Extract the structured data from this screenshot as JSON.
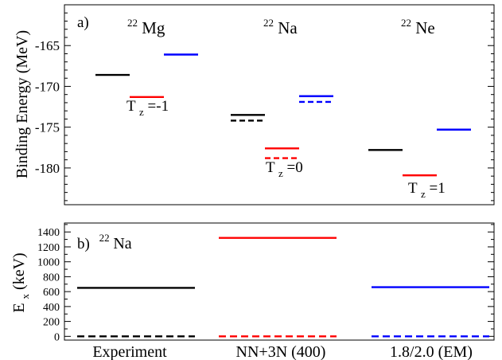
{
  "chart_data": [
    {
      "type": "level-scheme",
      "panel_label": "a)",
      "ylabel": "Binding Energy (MeV)",
      "ylim": [
        -184.5,
        -160
      ],
      "yticks": [
        -165,
        -170,
        -175,
        -180
      ],
      "tick_labels": [
        "-165",
        "-170",
        "-175",
        "-180"
      ],
      "grid": false,
      "nuclei": [
        {
          "mass": "22",
          "symbol": "Mg",
          "tz_sub": "z",
          "tz_value": "=-1"
        },
        {
          "mass": "22",
          "symbol": "Na",
          "tz_sub": "z",
          "tz_value": "=0"
        },
        {
          "mass": "22",
          "symbol": "Ne",
          "tz_sub": "z",
          "tz_value": "=1"
        }
      ],
      "tz_prefix": "T",
      "series_colors": [
        "#000000",
        "#ff0000",
        "#0000ff"
      ],
      "levels": [
        {
          "nucleus": 0,
          "series": 0,
          "energy": -168.6,
          "style": "solid"
        },
        {
          "nucleus": 0,
          "series": 1,
          "energy": -171.3,
          "style": "solid"
        },
        {
          "nucleus": 0,
          "series": 2,
          "energy": -166.1,
          "style": "solid"
        },
        {
          "nucleus": 1,
          "series": 0,
          "energy": -173.5,
          "style": "solid"
        },
        {
          "nucleus": 1,
          "series": 0,
          "energy": -174.2,
          "style": "dashed"
        },
        {
          "nucleus": 1,
          "series": 1,
          "energy": -177.6,
          "style": "solid"
        },
        {
          "nucleus": 1,
          "series": 1,
          "energy": -178.8,
          "style": "dashed"
        },
        {
          "nucleus": 1,
          "series": 2,
          "energy": -171.2,
          "style": "solid"
        },
        {
          "nucleus": 1,
          "series": 2,
          "energy": -171.9,
          "style": "dashed"
        },
        {
          "nucleus": 2,
          "series": 0,
          "energy": -177.8,
          "style": "solid"
        },
        {
          "nucleus": 2,
          "series": 1,
          "energy": -180.9,
          "style": "solid"
        },
        {
          "nucleus": 2,
          "series": 2,
          "energy": -175.3,
          "style": "solid"
        }
      ]
    },
    {
      "type": "level-scheme",
      "panel_label": "b)",
      "nucleus": {
        "mass": "22",
        "symbol": "Na"
      },
      "ylabel_main": "E",
      "ylabel_sub": "x",
      "ylabel_rest": " (keV)",
      "ylim": [
        -50,
        1520
      ],
      "yticks": [
        0,
        200,
        400,
        600,
        800,
        1000,
        1200,
        1400
      ],
      "tick_labels": [
        "0",
        "200",
        "400",
        "600",
        "800",
        "1000",
        "1200",
        "1400"
      ],
      "grid": false,
      "categories": [
        "Experiment",
        "NN+3N (400)",
        "1.8/2.0 (EM)"
      ],
      "series_colors": [
        "#000000",
        "#ff0000",
        "#0000ff"
      ],
      "levels": [
        {
          "series": 0,
          "energy": 650,
          "style": "solid"
        },
        {
          "series": 0,
          "energy": 0,
          "style": "dashed"
        },
        {
          "series": 1,
          "energy": 1320,
          "style": "solid"
        },
        {
          "series": 1,
          "energy": 0,
          "style": "dashed"
        },
        {
          "series": 2,
          "energy": 660,
          "style": "solid"
        },
        {
          "series": 2,
          "energy": 0,
          "style": "dashed"
        }
      ]
    }
  ]
}
